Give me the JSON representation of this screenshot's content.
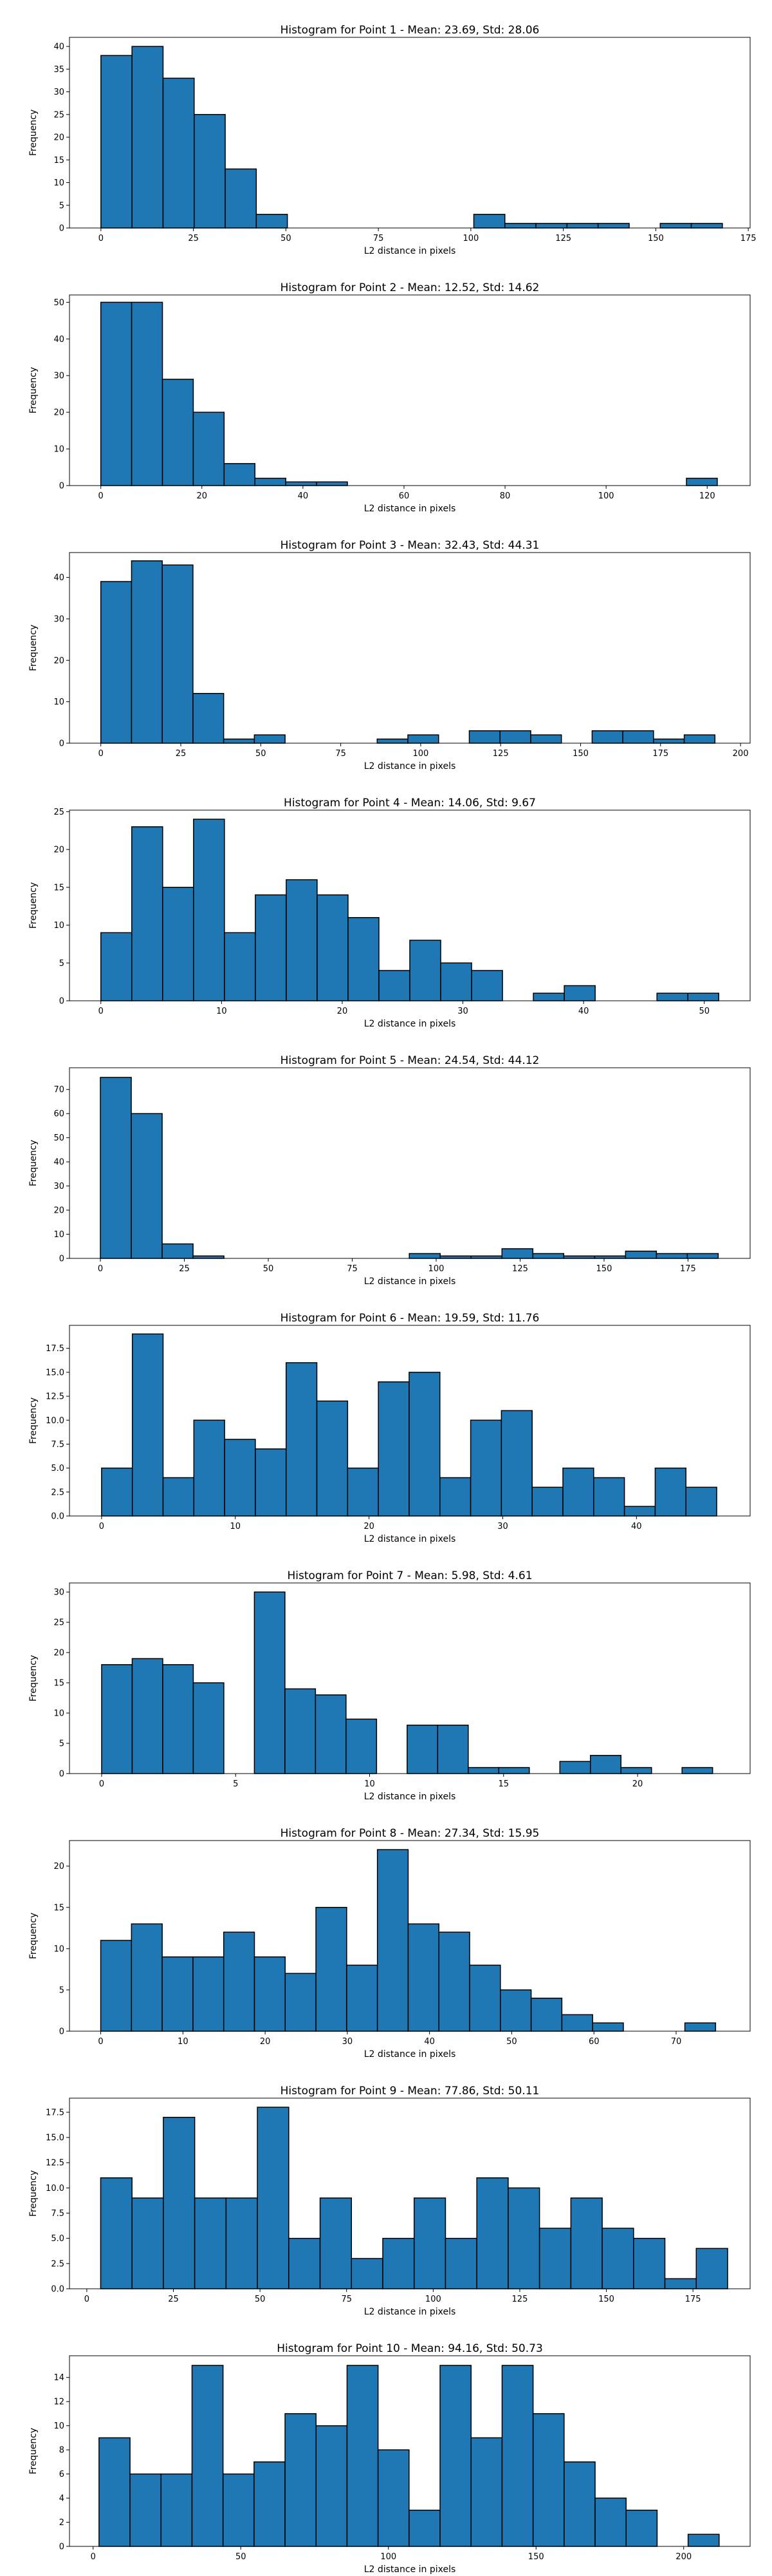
{
  "figure": {
    "background": "#ffffff",
    "bar_color": "#1f77b4",
    "edge_color": "#000000"
  },
  "chart_data": [
    {
      "type": "bar",
      "title": "Histogram for Point 1 - Mean: 23.69, Std: 28.06",
      "xlabel": "L2 distance in pixels",
      "ylabel": "Frequency",
      "xlim": [
        -8.5,
        175.5
      ],
      "ylim": [
        0,
        42
      ],
      "xticks": [
        0,
        25,
        50,
        75,
        100,
        125,
        150,
        175
      ],
      "yticks": [
        0,
        5,
        10,
        15,
        20,
        25,
        30,
        35,
        40
      ],
      "bin_start": 0,
      "bin_width": 8.4,
      "values": [
        38,
        40,
        33,
        25,
        13,
        3,
        0,
        0,
        0,
        0,
        0,
        0,
        3,
        1,
        1,
        1,
        1,
        0,
        1,
        1
      ]
    },
    {
      "type": "bar",
      "title": "Histogram for Point 2 - Mean: 12.52, Std: 14.62",
      "xlabel": "L2 distance in pixels",
      "ylabel": "Frequency",
      "xlim": [
        -6.2,
        128.5
      ],
      "ylim": [
        0,
        52
      ],
      "xticks": [
        0,
        20,
        40,
        60,
        80,
        100,
        120
      ],
      "yticks": [
        0,
        10,
        20,
        30,
        40,
        50
      ],
      "bin_start": 0,
      "bin_width": 6.1,
      "values": [
        50,
        50,
        29,
        20,
        6,
        2,
        1,
        1,
        0,
        0,
        0,
        0,
        0,
        0,
        0,
        0,
        0,
        0,
        0,
        2
      ]
    },
    {
      "type": "bar",
      "title": "Histogram for Point 3 - Mean: 32.43, Std: 44.31",
      "xlabel": "L2 distance in pixels",
      "ylabel": "Frequency",
      "xlim": [
        -9.8,
        203
      ],
      "ylim": [
        0,
        46
      ],
      "xticks": [
        0,
        25,
        50,
        75,
        100,
        125,
        150,
        175,
        200
      ],
      "yticks": [
        0,
        10,
        20,
        30,
        40
      ],
      "bin_start": 0,
      "bin_width": 9.6,
      "values": [
        39,
        44,
        43,
        12,
        1,
        2,
        0,
        0,
        0,
        1,
        2,
        0,
        3,
        3,
        2,
        0,
        3,
        3,
        1,
        2
      ]
    },
    {
      "type": "bar",
      "title": "Histogram for Point 4 - Mean: 14.06, Std: 9.67",
      "xlabel": "L2 distance in pixels",
      "ylabel": "Frequency",
      "xlim": [
        -2.6,
        53.8
      ],
      "ylim": [
        0,
        25.2
      ],
      "xticks": [
        0,
        10,
        20,
        30,
        40,
        50
      ],
      "yticks": [
        0,
        5,
        10,
        15,
        20,
        25
      ],
      "bin_start": 0,
      "bin_width": 2.56,
      "values": [
        9,
        23,
        15,
        24,
        9,
        14,
        16,
        14,
        11,
        4,
        8,
        5,
        4,
        0,
        1,
        2,
        0,
        0,
        1,
        1
      ]
    },
    {
      "type": "bar",
      "title": "Histogram for Point 5 - Mean: 24.54, Std: 44.12",
      "xlabel": "L2 distance in pixels",
      "ylabel": "Frequency",
      "xlim": [
        -9.2,
        193.5
      ],
      "ylim": [
        0,
        79
      ],
      "xticks": [
        0,
        25,
        50,
        75,
        100,
        125,
        150,
        175
      ],
      "yticks": [
        0,
        10,
        20,
        30,
        40,
        50,
        60,
        70
      ],
      "bin_start": 0,
      "bin_width": 9.2,
      "values": [
        75,
        60,
        6,
        1,
        0,
        0,
        0,
        0,
        0,
        0,
        2,
        1,
        1,
        4,
        2,
        1,
        1,
        3,
        2,
        2
      ]
    },
    {
      "type": "bar",
      "title": "Histogram for Point 6 - Mean: 19.59, Std: 11.76",
      "xlabel": "L2 distance in pixels",
      "ylabel": "Frequency",
      "xlim": [
        -2.4,
        48.5
      ],
      "ylim": [
        0,
        19.9
      ],
      "xticks": [
        0,
        10,
        20,
        30,
        40
      ],
      "yticks": [
        0,
        2.5,
        5,
        7.5,
        10,
        12.5,
        15,
        17.5
      ],
      "ytick_labels": [
        "0.0",
        "2.5",
        "5.0",
        "7.5",
        "10.0",
        "12.5",
        "15.0",
        "17.5"
      ],
      "bin_start": 0,
      "bin_width": 2.3,
      "values": [
        5,
        19,
        4,
        10,
        8,
        7,
        16,
        12,
        5,
        14,
        15,
        4,
        10,
        11,
        3,
        5,
        4,
        1,
        5,
        3
      ]
    },
    {
      "type": "bar",
      "title": "Histogram for Point 7 - Mean: 5.98, Std: 4.61",
      "xlabel": "L2 distance in pixels",
      "ylabel": "Frequency",
      "xlim": [
        -1.2,
        24.2
      ],
      "ylim": [
        0,
        31.5
      ],
      "xticks": [
        0,
        5,
        10,
        15,
        20
      ],
      "yticks": [
        0,
        5,
        10,
        15,
        20,
        25,
        30
      ],
      "bin_start": 0,
      "bin_width": 1.14,
      "values": [
        18,
        19,
        18,
        15,
        0,
        30,
        14,
        13,
        9,
        0,
        8,
        8,
        1,
        1,
        0,
        2,
        3,
        1,
        0,
        1
      ]
    },
    {
      "type": "bar",
      "title": "Histogram for Point 8 - Mean: 27.34, Std: 15.95",
      "xlabel": "L2 distance in pixels",
      "ylabel": "Frequency",
      "xlim": [
        -3.8,
        79
      ],
      "ylim": [
        0,
        23.1
      ],
      "xticks": [
        0,
        10,
        20,
        30,
        40,
        50,
        60,
        70
      ],
      "yticks": [
        0,
        5,
        10,
        15,
        20
      ],
      "bin_start": 0,
      "bin_width": 3.74,
      "values": [
        11,
        13,
        9,
        9,
        12,
        9,
        7,
        15,
        8,
        22,
        13,
        12,
        8,
        5,
        4,
        2,
        1,
        0,
        0,
        1
      ]
    },
    {
      "type": "bar",
      "title": "Histogram for Point 9 - Mean: 77.86, Std: 50.11",
      "xlabel": "L2 distance in pixels",
      "ylabel": "Frequency",
      "xlim": [
        -5,
        191.5
      ],
      "ylim": [
        0,
        18.9
      ],
      "xticks": [
        0,
        25,
        50,
        75,
        100,
        125,
        150,
        175
      ],
      "yticks": [
        0,
        2.5,
        5,
        7.5,
        10,
        12.5,
        15,
        17.5
      ],
      "ytick_labels": [
        "0.0",
        "2.5",
        "5.0",
        "7.5",
        "10.0",
        "12.5",
        "15.0",
        "17.5"
      ],
      "bin_start": 4,
      "bin_width": 9.05,
      "values": [
        11,
        9,
        17,
        9,
        9,
        18,
        5,
        9,
        3,
        5,
        9,
        5,
        11,
        10,
        6,
        9,
        6,
        5,
        1,
        4
      ]
    },
    {
      "type": "bar",
      "title": "Histogram for Point 10 - Mean: 94.16, Std: 50.73",
      "xlabel": "L2 distance in pixels",
      "ylabel": "Frequency",
      "xlim": [
        -8,
        222.5
      ],
      "ylim": [
        0,
        15.8
      ],
      "xticks": [
        0,
        50,
        100,
        150,
        200
      ],
      "yticks": [
        0,
        2,
        4,
        6,
        8,
        10,
        12,
        14
      ],
      "bin_start": 2,
      "bin_width": 10.5,
      "values": [
        9,
        6,
        6,
        15,
        6,
        7,
        11,
        10,
        15,
        8,
        3,
        15,
        9,
        15,
        11,
        7,
        4,
        3,
        0,
        1
      ]
    }
  ]
}
